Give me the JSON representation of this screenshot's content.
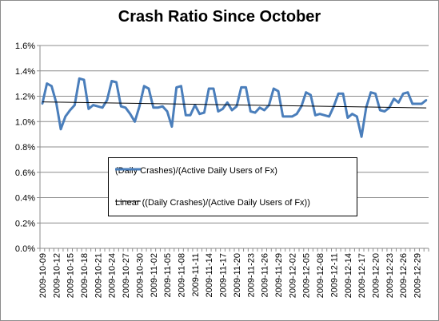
{
  "chart_data": {
    "type": "line",
    "title": "Crash Ratio Since October",
    "xlabel": "",
    "ylabel": "",
    "ylim": [
      0,
      0.016
    ],
    "yticks": [
      "0.0%",
      "0.2%",
      "0.4%",
      "0.6%",
      "0.8%",
      "1.0%",
      "1.2%",
      "1.4%",
      "1.6%"
    ],
    "grid": "horizontal",
    "legend_position": "center",
    "x_tick_labels": [
      "2009-10-09",
      "2009-10-12",
      "2009-10-15",
      "2009-10-18",
      "2009-10-21",
      "2009-10-24",
      "2009-10-27",
      "2009-10-30",
      "2009-11-02",
      "2009-11-05",
      "2009-11-08",
      "2009-11-11",
      "2009-11-14",
      "2009-11-17",
      "2009-11-20",
      "2009-11-23",
      "2009-11-26",
      "2009-11-29",
      "2009-12-02",
      "2009-12-05",
      "2009-12-08",
      "2009-12-11",
      "2009-12-14",
      "2009-12-17",
      "2009-12-20",
      "2009-12-23",
      "2009-12-26",
      "2009-12-29"
    ],
    "series": [
      {
        "name": "(Daily Crashes)/(Active Daily Users of Fx)",
        "color": "#4a7ebb",
        "x_start": "2009-10-09",
        "values": [
          0.0114,
          0.013,
          0.0128,
          0.0115,
          0.0094,
          0.0104,
          0.0109,
          0.0113,
          0.0134,
          0.0133,
          0.011,
          0.0113,
          0.0112,
          0.0111,
          0.0117,
          0.0132,
          0.0131,
          0.0112,
          0.0111,
          0.0106,
          0.01,
          0.0112,
          0.0128,
          0.0126,
          0.0111,
          0.0111,
          0.0112,
          0.0108,
          0.0096,
          0.0127,
          0.0128,
          0.0105,
          0.0105,
          0.0113,
          0.0106,
          0.0107,
          0.0126,
          0.0126,
          0.0108,
          0.011,
          0.0115,
          0.0109,
          0.0112,
          0.0127,
          0.0127,
          0.0108,
          0.0107,
          0.0111,
          0.0109,
          0.0113,
          0.0126,
          0.0124,
          0.0104,
          0.0104,
          0.0104,
          0.0106,
          0.0112,
          0.0123,
          0.0121,
          0.0105,
          0.0106,
          0.0105,
          0.0104,
          0.0112,
          0.0122,
          0.0122,
          0.0103,
          0.0106,
          0.0104,
          0.0088,
          0.0111,
          0.0123,
          0.0122,
          0.0109,
          0.0108,
          0.0111,
          0.0118,
          0.0115,
          0.0122,
          0.0123,
          0.0114,
          0.0114,
          0.0114,
          0.0117
        ]
      },
      {
        "name": "Linear ((Daily Crashes)/(Active Daily Users of Fx))",
        "color": "#000000",
        "type": "trendline",
        "start": 0.01155,
        "end": 0.01108
      }
    ]
  }
}
